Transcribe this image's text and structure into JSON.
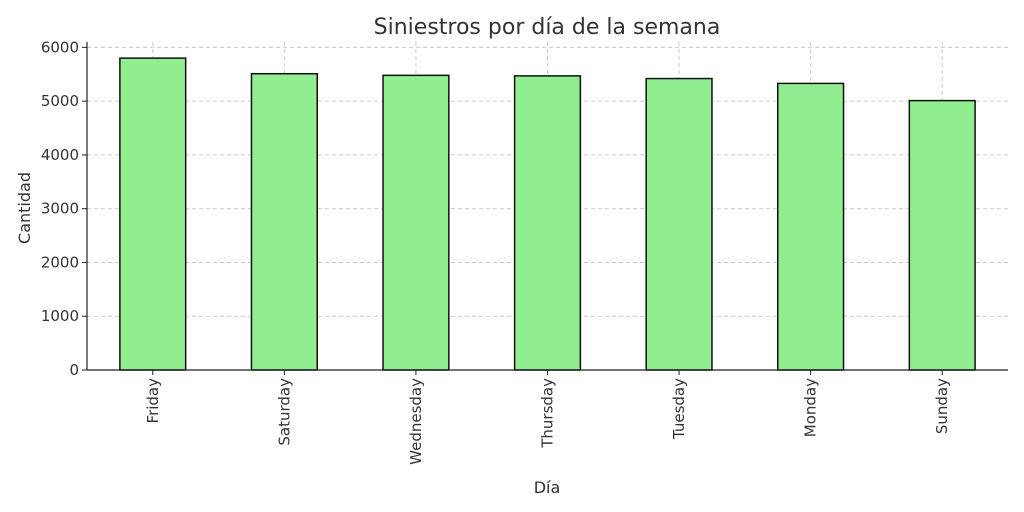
{
  "chart_data": {
    "type": "bar",
    "title": "Siniestros por día de la semana",
    "xlabel": "Día",
    "ylabel": "Cantidad",
    "categories": [
      "Friday",
      "Saturday",
      "Wednesday",
      "Thursday",
      "Tuesday",
      "Monday",
      "Sunday"
    ],
    "values": [
      5800,
      5510,
      5480,
      5470,
      5420,
      5330,
      5010
    ],
    "ylim": [
      0,
      6100
    ],
    "yticks": [
      0,
      1000,
      2000,
      3000,
      4000,
      5000,
      6000
    ],
    "grid": true,
    "bar_color": "#90ee90",
    "edge_color": "#111111",
    "grid_color": "#cccccc"
  }
}
